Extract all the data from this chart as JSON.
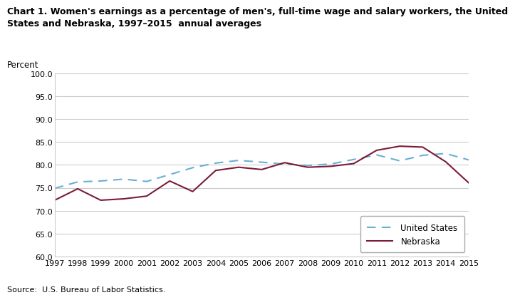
{
  "title": "Chart 1. Women's earnings as a percentage of men's, full-time wage and salary workers, the United\nStates and Nebraska, 1997–2015  annual averages",
  "ylabel": "Percent",
  "source": "Source:  U.S. Bureau of Labor Statistics.",
  "years": [
    1997,
    1998,
    1999,
    2000,
    2001,
    2002,
    2003,
    2004,
    2005,
    2006,
    2007,
    2008,
    2009,
    2010,
    2011,
    2012,
    2013,
    2014,
    2015
  ],
  "us_data": [
    74.9,
    76.3,
    76.5,
    76.9,
    76.4,
    77.9,
    79.4,
    80.4,
    81.0,
    80.6,
    80.2,
    79.9,
    80.2,
    81.2,
    82.2,
    80.9,
    82.1,
    82.5,
    81.1
  ],
  "ne_data": [
    72.3,
    74.8,
    72.3,
    72.6,
    73.2,
    76.5,
    74.2,
    78.8,
    79.5,
    79.0,
    80.5,
    79.5,
    79.7,
    80.3,
    83.2,
    84.1,
    83.9,
    80.7,
    76.1
  ],
  "us_color": "#6BAED6",
  "ne_color": "#7B1C38",
  "ylim": [
    60.0,
    100.0
  ],
  "yticks": [
    60.0,
    65.0,
    70.0,
    75.0,
    80.0,
    85.0,
    90.0,
    95.0,
    100.0
  ],
  "bg_color": "#ffffff",
  "plot_bg_color": "#ffffff",
  "grid_color": "#cccccc",
  "legend_us": "United States",
  "legend_ne": "Nebraska"
}
